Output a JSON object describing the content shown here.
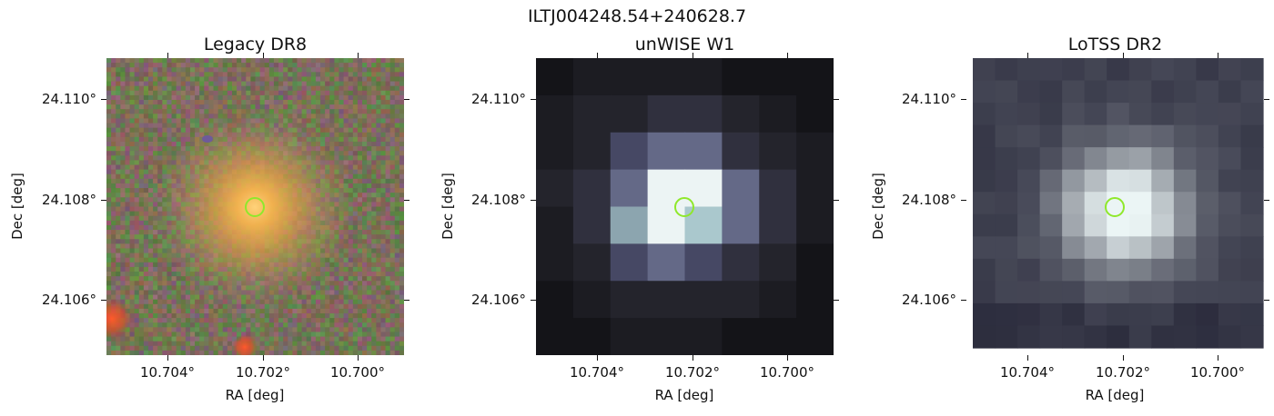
{
  "figure_title": "ILTJ004248.54+240628.7",
  "panels": [
    {
      "title": "Legacy DR8",
      "xlabel": "RA [deg]",
      "ylabel": "Dec [deg]",
      "xticks": [
        "10.704°",
        "10.702°",
        "10.700°"
      ],
      "yticks": [
        "24.110°",
        "24.108°",
        "24.106°"
      ],
      "image": "optical-galaxy-cutout",
      "marker_color": "#8fe82b"
    },
    {
      "title": "unWISE W1",
      "xlabel": "RA [deg]",
      "ylabel": "Dec [deg]",
      "xticks": [
        "10.704°",
        "10.702°",
        "10.700°"
      ],
      "yticks": [
        "24.110°",
        "24.108°",
        "24.106°"
      ],
      "image": "infrared-pixel-cutout",
      "marker_color": "#8fe82b"
    },
    {
      "title": "LoTSS DR2",
      "xlabel": "RA [deg]",
      "ylabel": "Dec [deg]",
      "xticks": [
        "10.704°",
        "10.702°",
        "10.700°"
      ],
      "yticks": [
        "24.110°",
        "24.108°",
        "24.106°"
      ],
      "image": "radio-pixel-cutout",
      "marker_color": "#8fe82b"
    }
  ]
}
